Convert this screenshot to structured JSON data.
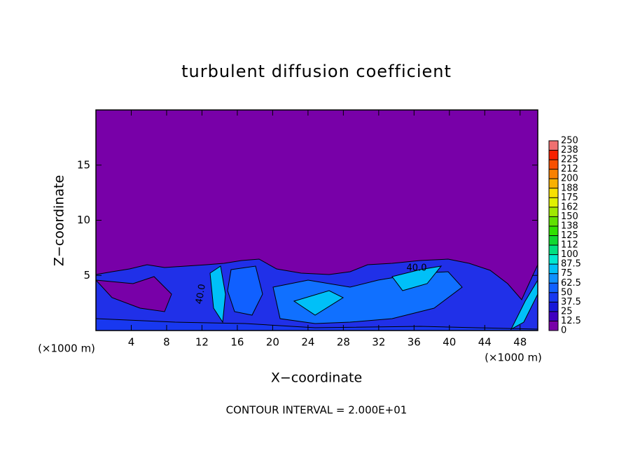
{
  "chart_data": {
    "type": "contour",
    "title": "turbulent diffusion coefficient",
    "xlabel": "X−coordinate",
    "ylabel": "Z−coordinate",
    "x_unit": "(×1000 m)",
    "footnote": "CONTOUR INTERVAL = 2.000E+01",
    "contour_labels": [
      "40.0",
      "40.0"
    ],
    "xlim": [
      0,
      50
    ],
    "xticks": [
      4,
      8,
      12,
      16,
      20,
      24,
      28,
      32,
      36,
      40,
      44,
      48
    ],
    "ylim": [
      0,
      20
    ],
    "yticks": [
      5,
      10,
      15
    ],
    "colorbar": {
      "levels": [
        0,
        12.5,
        25,
        37.5,
        50,
        62.5,
        75,
        87.5,
        100,
        112,
        125,
        138,
        150,
        162,
        175,
        188,
        200,
        212,
        225,
        238,
        250
      ],
      "colors": [
        "#7800a8",
        "#4000c0",
        "#1818d8",
        "#1838f0",
        "#1060ff",
        "#1090ff",
        "#00c0f8",
        "#00e8d0",
        "#00e080",
        "#10d830",
        "#30e000",
        "#60e000",
        "#a0e800",
        "#e0f000",
        "#f8e000",
        "#f8b000",
        "#f88000",
        "#f85000",
        "#f82000",
        "#f07070"
      ]
    }
  }
}
